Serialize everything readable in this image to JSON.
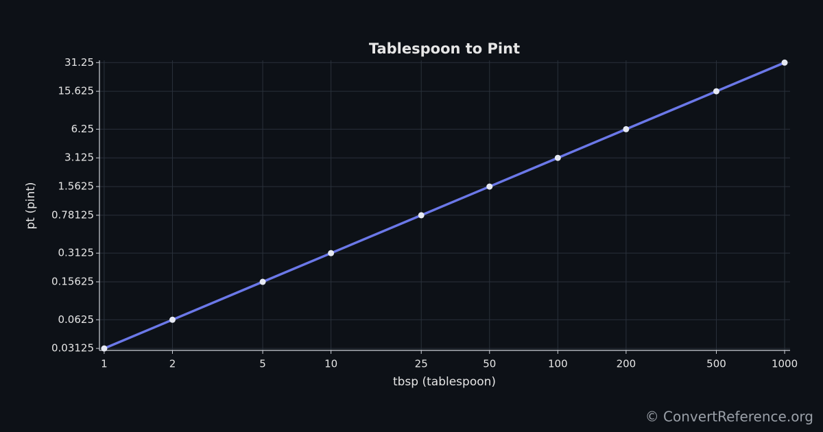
{
  "chart_data": {
    "type": "line",
    "title": "Tablespoon to Pint",
    "x_label": "tbsp (tablespoon)",
    "y_label": "pt (pint)",
    "x": [
      1,
      2,
      5,
      10,
      25,
      50,
      100,
      200,
      500,
      1000
    ],
    "series": [
      {
        "name": "pt (pint)",
        "color": "#6b78e8",
        "values": [
          0.03125,
          0.0625,
          0.15625,
          0.3125,
          0.78125,
          1.5625,
          3.125,
          6.25,
          15.625,
          31.25
        ]
      }
    ],
    "xlim": [
      0.953,
      1057
    ],
    "ylim": [
      0.0298,
      33.0
    ],
    "xticks": [
      1,
      2,
      5,
      10,
      25,
      50,
      100,
      200,
      500,
      1000
    ],
    "yticks": [
      0.03125,
      0.0625,
      0.15625,
      0.3125,
      0.78125,
      1.5625,
      3.125,
      6.25,
      15.625,
      31.25
    ],
    "xscale": "log",
    "yscale": "log",
    "grid": true,
    "marker_color": "#e6e9f2",
    "watermark": "© ConvertReference.org"
  }
}
